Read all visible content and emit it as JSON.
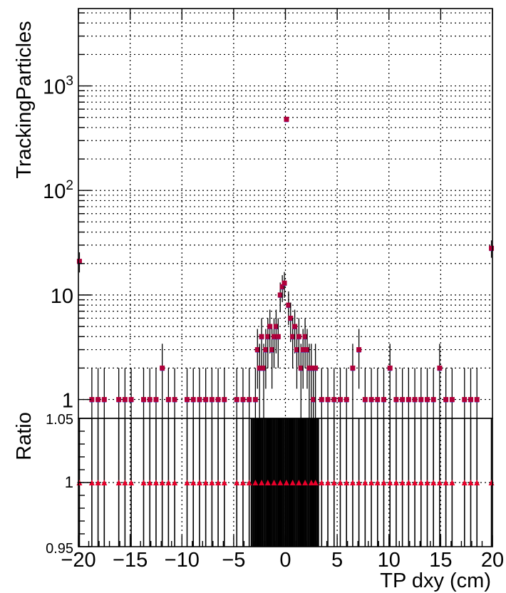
{
  "chart_data": [
    {
      "type": "scatter",
      "xlabel": "",
      "ylabel": "TrackingParticles",
      "xlim": [
        -20,
        20
      ],
      "ylim": [
        0.66,
        5500
      ],
      "yscale": "log",
      "grid": true,
      "yticks": [
        {
          "value": 1,
          "label": "1"
        },
        {
          "value": 10,
          "label": "10"
        },
        {
          "value": 100,
          "label": "10",
          "sup": "2"
        },
        {
          "value": 1000,
          "label": "10",
          "sup": "3"
        }
      ],
      "series": [
        {
          "marker": "square",
          "color": "#b0003a",
          "x": [
            -19.9,
            -18.7,
            -18.1,
            -17.5,
            -16.1,
            -15.5,
            -14.9,
            -13.7,
            -13.1,
            -12.5,
            -11.9,
            -11.3,
            -10.7,
            -9.5,
            -8.9,
            -8.3,
            -7.7,
            -7.1,
            -6.5,
            -5.9,
            -4.7,
            -4.1,
            -3.5,
            -2.9,
            -2.7,
            -2.5,
            -2.3,
            -2.1,
            -1.9,
            -1.7,
            -1.5,
            -1.3,
            -1.1,
            -0.9,
            -0.7,
            -0.5,
            -0.3,
            -0.1,
            0.1,
            0.3,
            0.5,
            0.7,
            0.9,
            1.1,
            1.3,
            1.5,
            1.7,
            1.9,
            2.1,
            2.3,
            2.5,
            2.7,
            2.9,
            3.5,
            4.1,
            4.7,
            5.3,
            5.9,
            6.5,
            7.1,
            7.7,
            8.3,
            8.9,
            9.5,
            10.1,
            10.7,
            11.3,
            11.9,
            12.5,
            13.1,
            13.7,
            14.3,
            14.9,
            15.5,
            16.1,
            17.3,
            17.9,
            18.5,
            19.9
          ],
          "y": [
            21,
            1,
            1,
            1,
            1,
            1,
            1,
            1,
            1,
            1,
            2,
            1,
            1,
            1,
            1,
            1,
            1,
            1,
            1,
            1,
            1,
            1,
            1,
            1,
            3,
            2,
            4,
            2,
            3,
            4,
            5,
            3,
            4,
            5,
            4,
            10,
            12,
            13,
            480,
            8,
            6,
            4,
            5,
            3,
            4,
            2,
            3,
            4,
            3,
            2,
            2,
            1,
            2,
            1,
            1,
            1,
            1,
            1,
            2,
            3,
            1,
            1,
            1,
            1,
            2,
            1,
            1,
            1,
            1,
            1,
            1,
            1,
            2,
            1,
            1,
            1,
            1,
            1,
            28
          ]
        }
      ]
    },
    {
      "type": "scatter",
      "xlabel": "TP dxy (cm)",
      "ylabel": "Ratio",
      "xlim": [
        -20,
        20
      ],
      "ylim": [
        0.95,
        1.05
      ],
      "grid": true,
      "xticks": [
        {
          "value": -20,
          "label": "−20"
        },
        {
          "value": -15,
          "label": "−15"
        },
        {
          "value": -10,
          "label": "−10"
        },
        {
          "value": -5,
          "label": "−5"
        },
        {
          "value": 0,
          "label": "0"
        },
        {
          "value": 5,
          "label": "5"
        },
        {
          "value": 10,
          "label": "10"
        },
        {
          "value": 15,
          "label": "15"
        },
        {
          "value": 20,
          "label": "20"
        }
      ],
      "yticks": [
        {
          "value": 0.95,
          "label": "0.95"
        },
        {
          "value": 1,
          "label": "1"
        },
        {
          "value": 1.05,
          "label": "1.05"
        }
      ],
      "series": [
        {
          "marker": "triangle",
          "color": "#e8002a",
          "value": 1,
          "x": [
            -19.9,
            -18.7,
            -18.1,
            -17.5,
            -16.1,
            -15.5,
            -14.9,
            -13.7,
            -13.1,
            -12.5,
            -11.9,
            -11.3,
            -10.7,
            -9.5,
            -8.9,
            -8.3,
            -7.7,
            -7.1,
            -6.5,
            -5.9,
            -4.7,
            -4.1,
            -3.5,
            -2.9,
            -2.3,
            -1.7,
            -1.1,
            -0.5,
            0.1,
            0.7,
            1.3,
            1.9,
            2.5,
            2.9,
            3.5,
            4.1,
            4.7,
            5.3,
            5.9,
            6.5,
            7.1,
            7.7,
            8.3,
            8.9,
            9.5,
            10.1,
            10.7,
            11.3,
            11.9,
            12.5,
            13.1,
            13.7,
            14.3,
            14.9,
            15.5,
            16.1,
            17.3,
            17.9,
            18.5,
            19.9
          ]
        }
      ]
    }
  ]
}
